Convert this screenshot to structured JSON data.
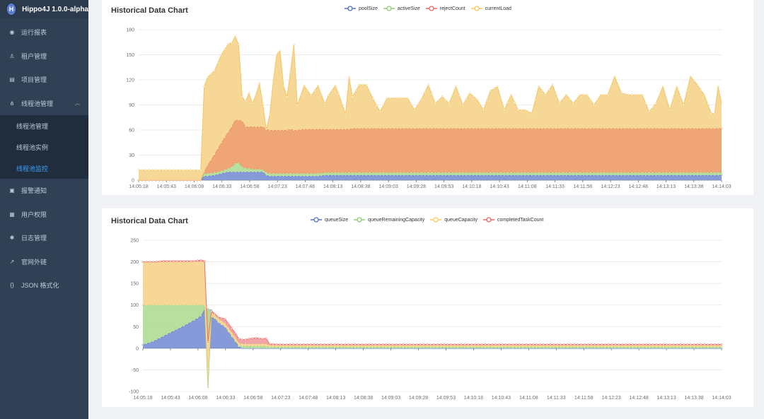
{
  "app": {
    "logo_letter": "H",
    "title": "Hippo4J 1.0.0-alpha"
  },
  "sidebar": {
    "items": [
      {
        "label": "运行报表",
        "icon": "dashboard-icon",
        "glyph": "◉"
      },
      {
        "label": "租户管理",
        "icon": "user-icon",
        "glyph": "♙"
      },
      {
        "label": "项目管理",
        "icon": "document-icon",
        "glyph": "▤"
      },
      {
        "label": "线程池管理",
        "icon": "tree-icon",
        "glyph": "⋔"
      },
      {
        "label": "报警通知",
        "icon": "lock-icon",
        "glyph": "▣"
      },
      {
        "label": "用户权限",
        "icon": "grid-icon",
        "glyph": "▦"
      },
      {
        "label": "日志管理",
        "icon": "bug-icon",
        "glyph": "✱"
      },
      {
        "label": "官网外链",
        "icon": "external-link-icon",
        "glyph": "↗"
      },
      {
        "label": "JSON 格式化",
        "icon": "code-icon",
        "glyph": "{}"
      }
    ],
    "submenu": [
      {
        "label": "线程池管理",
        "active": false
      },
      {
        "label": "线程池实例",
        "active": false
      },
      {
        "label": "线程池监控",
        "active": true
      }
    ],
    "submenu_chevron": "︿"
  },
  "chart_data": [
    {
      "type": "area",
      "stacked": true,
      "title": "Historical Data Chart",
      "legend_position": "top-center",
      "ylim": [
        0,
        180
      ],
      "yticks": [
        0,
        30,
        60,
        90,
        120,
        150,
        180
      ],
      "grid": true,
      "x_tick_labels": [
        "14:05:18",
        "14:05:43",
        "14:06:08",
        "14:06:33",
        "14:06:58",
        "14:07:23",
        "14:07:48",
        "14:08:13",
        "14:08:38",
        "14:09:03",
        "14:09:28",
        "14:09:53",
        "14:10:18",
        "14:10:43",
        "14:11:08",
        "14:11:33",
        "14:11:58",
        "14:12:23",
        "14:12:48",
        "14:13:13",
        "14:13:38",
        "14:14:03"
      ],
      "series": [
        {
          "name": "poolSize",
          "color": "#5470c6"
        },
        {
          "name": "activeSize",
          "color": "#91cc75"
        },
        {
          "name": "rejectCount",
          "color": "#ee6666"
        },
        {
          "name": "currentLoad",
          "color": "#fac858"
        }
      ],
      "series_fill": [
        "#8094d6",
        "#b4dd99",
        "#eea06e",
        "#f5d590"
      ],
      "series_line": [
        "#5470c6",
        "#91cc75",
        "#e8863a",
        "#f1c55c"
      ],
      "key_points": [
        [
          0,
          0.0,
          0.0,
          0.0,
          12
        ],
        [
          15,
          0.0,
          0.0,
          0.0,
          12
        ],
        [
          18,
          0.0,
          0.0,
          0.0,
          12
        ],
        [
          19,
          5,
          3,
          2,
          102
        ],
        [
          20,
          5,
          3,
          10,
          105
        ],
        [
          22,
          6,
          3,
          22,
          100
        ],
        [
          24,
          8,
          3,
          34,
          105
        ],
        [
          26,
          10,
          4,
          44,
          105
        ],
        [
          27,
          10,
          6,
          48,
          100
        ],
        [
          28,
          10,
          10,
          52,
          100
        ],
        [
          29,
          10,
          11,
          51,
          90
        ],
        [
          30,
          10,
          6,
          55,
          29
        ],
        [
          31,
          10,
          4,
          50,
          30
        ],
        [
          32,
          10,
          4,
          50,
          40
        ],
        [
          33,
          10,
          3,
          51,
          28
        ],
        [
          34,
          10,
          3,
          51,
          38
        ],
        [
          35,
          10,
          3,
          51,
          52
        ],
        [
          36,
          10,
          3,
          51,
          27
        ],
        [
          37,
          6,
          3,
          52,
          0
        ],
        [
          38,
          5,
          3,
          52,
          18
        ],
        [
          39,
          5,
          3,
          52,
          58
        ],
        [
          40,
          5,
          3,
          52,
          90
        ],
        [
          41,
          5,
          3,
          52,
          95
        ],
        [
          42,
          5,
          3,
          52,
          53
        ],
        [
          43,
          5,
          3,
          52,
          40
        ],
        [
          44,
          5,
          3,
          53,
          68
        ],
        [
          45,
          5,
          3,
          52,
          102
        ],
        [
          46,
          5,
          3,
          52,
          30
        ],
        [
          48,
          5,
          3,
          53,
          52
        ],
        [
          49,
          5,
          3,
          53,
          46
        ],
        [
          50,
          5,
          3,
          53,
          40
        ],
        [
          52,
          5,
          3,
          53,
          52
        ],
        [
          54,
          6,
          3,
          52,
          30
        ],
        [
          55,
          6,
          3,
          52,
          40
        ],
        [
          57,
          6,
          3,
          52,
          52
        ],
        [
          58,
          6,
          3,
          52,
          42
        ],
        [
          60,
          6,
          3,
          52,
          18
        ],
        [
          61,
          6,
          3,
          52,
          62
        ],
        [
          62,
          6,
          3,
          53,
          38
        ],
        [
          64,
          6,
          3,
          53,
          52
        ],
        [
          66,
          6,
          3,
          53,
          52
        ],
        [
          68,
          6,
          3,
          53,
          35
        ],
        [
          70,
          6,
          3,
          53,
          20
        ],
        [
          72,
          6,
          3,
          53,
          36
        ],
        [
          74,
          6,
          3,
          53,
          36
        ],
        [
          76,
          6,
          3,
          53,
          36
        ],
        [
          78,
          6,
          3,
          53,
          36
        ],
        [
          80,
          6,
          3,
          53,
          22
        ],
        [
          82,
          6,
          3,
          53,
          35
        ],
        [
          84,
          6,
          3,
          53,
          52
        ],
        [
          86,
          6,
          3,
          53,
          30
        ],
        [
          88,
          6,
          3,
          53,
          38
        ],
        [
          90,
          6,
          3,
          53,
          30
        ],
        [
          92,
          6,
          3,
          53,
          50
        ],
        [
          94,
          6,
          3,
          53,
          28
        ],
        [
          96,
          6,
          3,
          53,
          42
        ],
        [
          98,
          6,
          3,
          53,
          35
        ],
        [
          100,
          6,
          3,
          53,
          22
        ],
        [
          102,
          6,
          3,
          53,
          45
        ],
        [
          104,
          6,
          3,
          53,
          50
        ],
        [
          106,
          6,
          3,
          53,
          22
        ],
        [
          108,
          6,
          3,
          53,
          40
        ],
        [
          110,
          6,
          3,
          53,
          22
        ],
        [
          112,
          6,
          3,
          53,
          22
        ],
        [
          114,
          6,
          3,
          53,
          18
        ],
        [
          116,
          6,
          3,
          53,
          50
        ],
        [
          118,
          6,
          3,
          53,
          40
        ],
        [
          120,
          6,
          3,
          53,
          52
        ],
        [
          122,
          6,
          3,
          53,
          30
        ],
        [
          124,
          6,
          3,
          53,
          40
        ],
        [
          126,
          6,
          3,
          53,
          30
        ],
        [
          128,
          6,
          3,
          53,
          40
        ],
        [
          130,
          6,
          3,
          53,
          40
        ],
        [
          132,
          6,
          3,
          53,
          28
        ],
        [
          134,
          6,
          3,
          53,
          40
        ],
        [
          136,
          6,
          3,
          53,
          40
        ],
        [
          138,
          6,
          3,
          53,
          62
        ],
        [
          140,
          6,
          3,
          53,
          42
        ],
        [
          142,
          6,
          3,
          53,
          40
        ],
        [
          144,
          6,
          3,
          53,
          40
        ],
        [
          146,
          6,
          3,
          53,
          40
        ],
        [
          148,
          6,
          3,
          53,
          20
        ],
        [
          150,
          6,
          3,
          53,
          30
        ],
        [
          152,
          6,
          3,
          53,
          50
        ],
        [
          154,
          6,
          3,
          53,
          22
        ],
        [
          156,
          6,
          3,
          53,
          50
        ],
        [
          158,
          6,
          3,
          53,
          28
        ],
        [
          160,
          6,
          3,
          53,
          62
        ],
        [
          162,
          6,
          3,
          53,
          52
        ],
        [
          164,
          6,
          3,
          53,
          40
        ],
        [
          166,
          6,
          3,
          53,
          18
        ],
        [
          167,
          6,
          3,
          53,
          18
        ],
        [
          168,
          6,
          3,
          53,
          50
        ],
        [
          169,
          6,
          3,
          53,
          30
        ]
      ]
    },
    {
      "type": "area",
      "stacked": true,
      "title": "Historical Data Chart",
      "legend_position": "top-center",
      "ylim": [
        -100,
        250
      ],
      "yticks": [
        -100,
        -50,
        0,
        50,
        100,
        150,
        200,
        250
      ],
      "grid": true,
      "x_tick_labels": [
        "14:05:18",
        "14:05:43",
        "14:06:08",
        "14:06:33",
        "14:06:58",
        "14:07:23",
        "14:07:48",
        "14:08:13",
        "14:08:38",
        "14:09:03",
        "14:09:28",
        "14:09:53",
        "14:10:18",
        "14:10:43",
        "14:11:08",
        "14:11:33",
        "14:11:58",
        "14:12:23",
        "14:12:48",
        "14:13:13",
        "14:13:38",
        "14:14:03"
      ],
      "series": [
        {
          "name": "queueSize",
          "color": "#5470c6"
        },
        {
          "name": "queueRemainingCapacity",
          "color": "#91cc75"
        },
        {
          "name": "queueCapacity",
          "color": "#fac858"
        },
        {
          "name": "completedTaskCount",
          "color": "#ee6666"
        }
      ],
      "series_fill": [
        "#8094d6",
        "#b4dd99",
        "#f5d590",
        "#eea0a0"
      ],
      "series_line": [
        "#5470c6",
        "#91cc75",
        "#f1c55c",
        "#ee6666"
      ],
      "key_points": [
        [
          0,
          8,
          92,
          100,
          0
        ],
        [
          3,
          16,
          84,
          100,
          0
        ],
        [
          6,
          28,
          72,
          100,
          2
        ],
        [
          9,
          40,
          60,
          100,
          2
        ],
        [
          12,
          52,
          48,
          100,
          2
        ],
        [
          15,
          65,
          35,
          100,
          2
        ],
        [
          17,
          75,
          25,
          100,
          4
        ],
        [
          18,
          90,
          10,
          100,
          2
        ],
        [
          19,
          90,
          -180,
          100,
          5
        ],
        [
          20,
          88,
          -15,
          10,
          2
        ],
        [
          21,
          78,
          -8,
          8,
          2
        ],
        [
          22,
          66,
          -5,
          8,
          3
        ],
        [
          24,
          54,
          -4,
          8,
          10
        ],
        [
          26,
          30,
          -2,
          8,
          10
        ],
        [
          27,
          18,
          -1,
          8,
          10
        ],
        [
          28,
          4,
          2,
          6,
          10
        ],
        [
          29,
          0.0,
          5,
          5,
          10
        ],
        [
          30,
          0.0,
          5,
          5,
          10
        ],
        [
          31,
          0.0,
          5,
          5,
          12
        ],
        [
          33,
          0.0,
          5,
          5,
          14
        ],
        [
          35,
          0.0,
          5,
          5,
          12
        ],
        [
          36,
          0.0,
          5,
          5,
          13
        ],
        [
          37,
          0.0,
          3,
          4,
          3
        ],
        [
          40,
          0.0,
          3,
          4,
          2
        ],
        [
          169,
          0.0,
          3,
          4,
          2
        ]
      ]
    }
  ]
}
